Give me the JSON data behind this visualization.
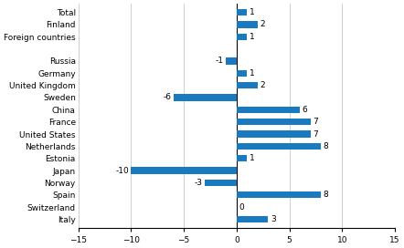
{
  "categories": [
    "Italy",
    "Switzerland",
    "Spain",
    "Norway",
    "Japan",
    "Estonia",
    "Netherlands",
    "United States",
    "France",
    "China",
    "Sweden",
    "United Kingdom",
    "Germany",
    "Russia",
    "",
    "Foreign countries",
    "Finland",
    "Total"
  ],
  "values": [
    3,
    0,
    8,
    -3,
    -10,
    1,
    8,
    7,
    7,
    6,
    -6,
    2,
    1,
    -1,
    null,
    1,
    2,
    1
  ],
  "bar_color": "#1a7abf",
  "xlim": [
    -15,
    15
  ],
  "xticks": [
    -15,
    -10,
    -5,
    0,
    5,
    10,
    15
  ],
  "background_color": "#ffffff",
  "bar_height": 0.55,
  "label_fontsize": 6.5,
  "tick_fontsize": 6.5
}
